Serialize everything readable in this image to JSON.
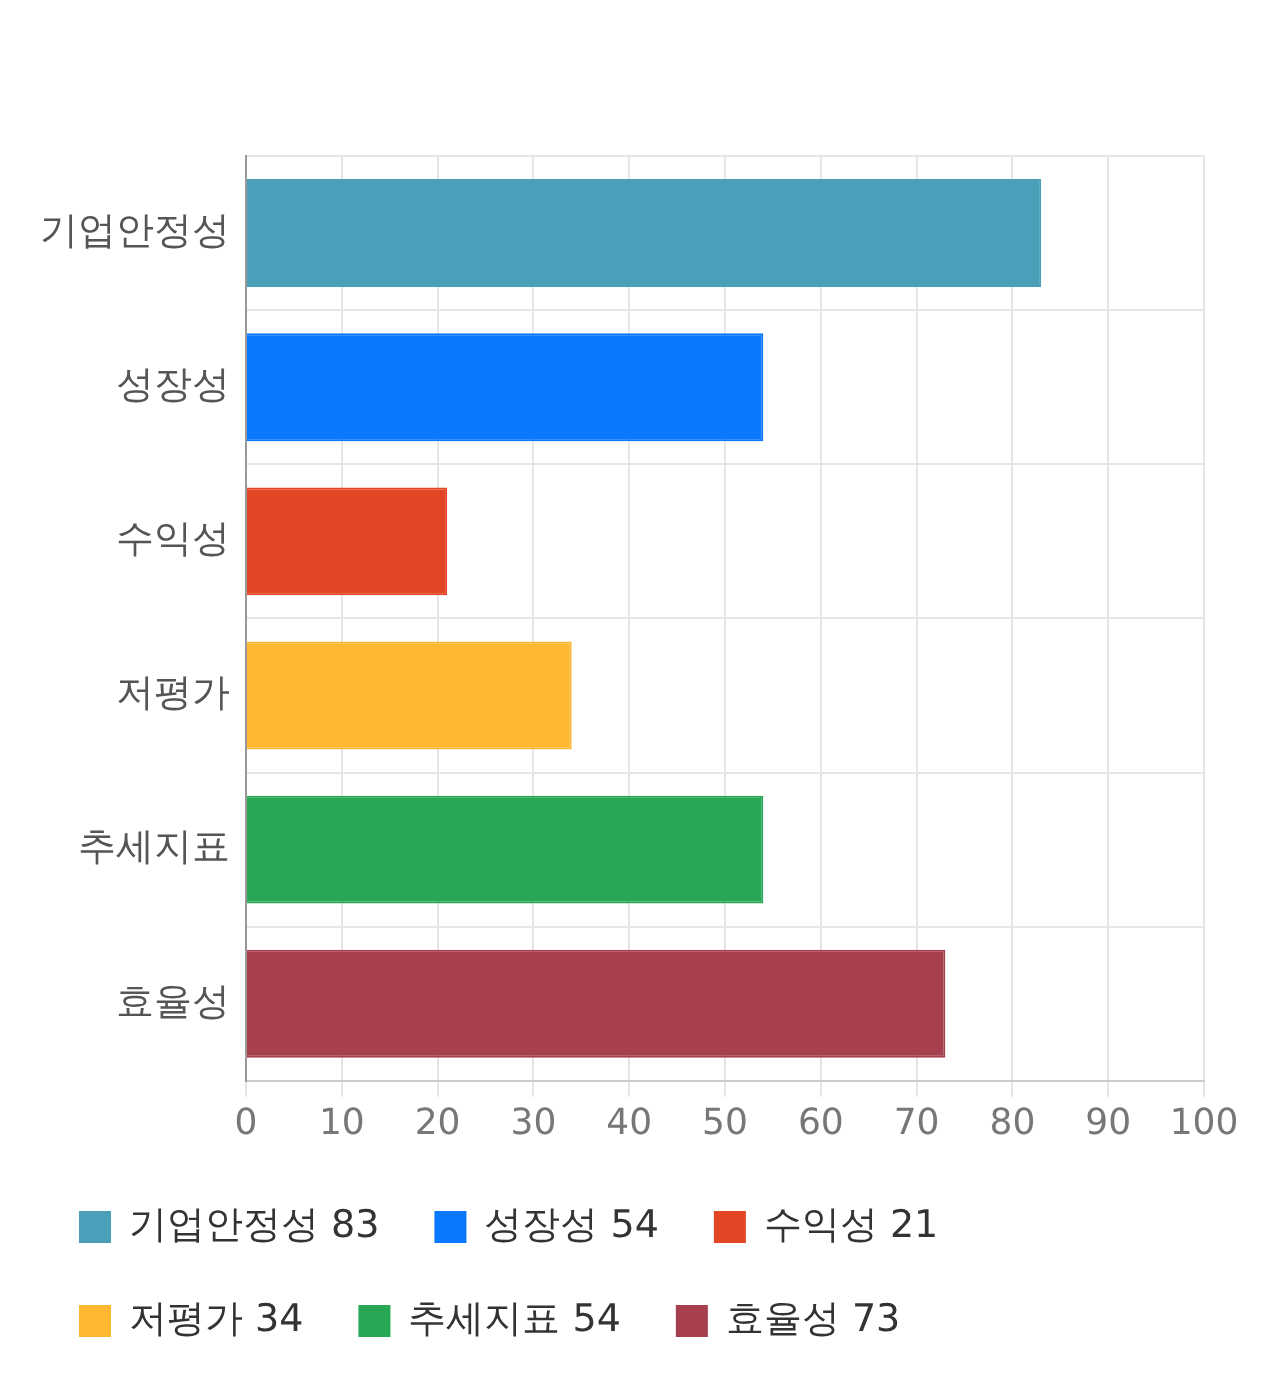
{
  "chart_data": {
    "type": "bar",
    "orientation": "horizontal",
    "categories": [
      "기업안정성",
      "성장성",
      "수익성",
      "저평가",
      "추세지표",
      "효율성"
    ],
    "series": [
      {
        "name": "기업안정성 83",
        "color": "#4aa0b8",
        "values": [
          83,
          null,
          null,
          null,
          null,
          null
        ]
      },
      {
        "name": "성장성 54",
        "color": "#0a78fc",
        "values": [
          null,
          54,
          null,
          null,
          null,
          null
        ]
      },
      {
        "name": "수익성 21",
        "color": "#e34624",
        "values": [
          null,
          null,
          21,
          null,
          null,
          null
        ]
      },
      {
        "name": "저평가 34",
        "color": "#fdb731",
        "values": [
          null,
          null,
          null,
          34,
          null,
          null
        ]
      },
      {
        "name": "추세지표 54",
        "color": "#28a755",
        "values": [
          null,
          null,
          null,
          null,
          54,
          null
        ]
      },
      {
        "name": "효율성 73",
        "color": "#a6404f",
        "values": [
          null,
          null,
          null,
          null,
          null,
          73
        ]
      }
    ],
    "xlim": [
      0,
      100
    ],
    "xticks": [
      0,
      10,
      20,
      30,
      40,
      50,
      60,
      70,
      80,
      90,
      100
    ],
    "grid": true,
    "legend": "bottom"
  }
}
